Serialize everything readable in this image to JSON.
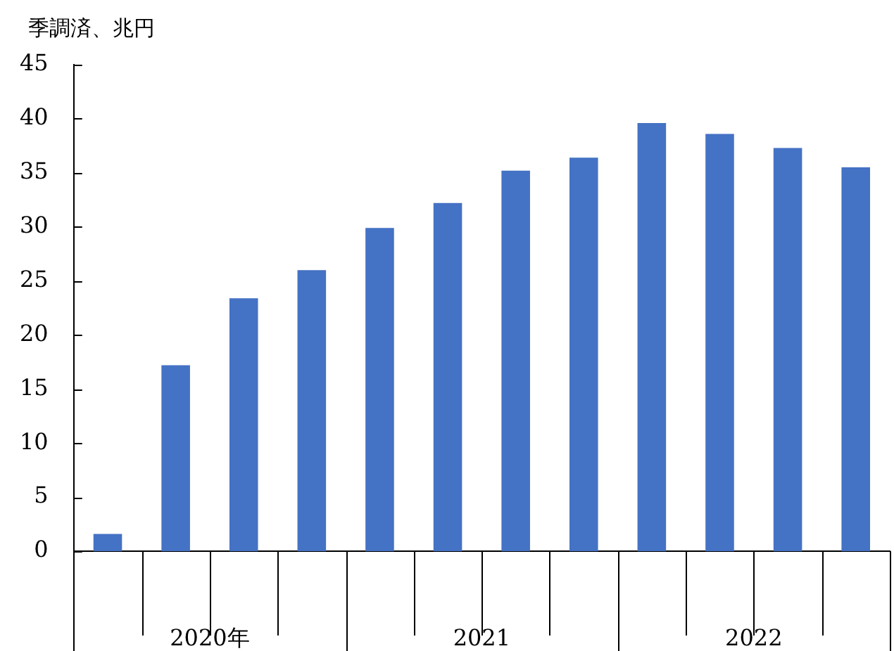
{
  "chart_data": {
    "type": "bar",
    "ylabel": "季調済、兆円",
    "categories": [
      null,
      null,
      null,
      null,
      null,
      null,
      null,
      null,
      null,
      null,
      null,
      null
    ],
    "annotations": [
      "2020年",
      "2021",
      "2022"
    ],
    "values": [
      1.6,
      17.2,
      23.4,
      26.0,
      29.9,
      32.2,
      35.2,
      36.4,
      39.6,
      38.6,
      37.3,
      35.5
    ],
    "color": "#4472c4",
    "ylim": [
      0,
      45
    ],
    "yticks": [
      0,
      5,
      10,
      15,
      20,
      25,
      30,
      35,
      40,
      45
    ],
    "grid": false
  }
}
